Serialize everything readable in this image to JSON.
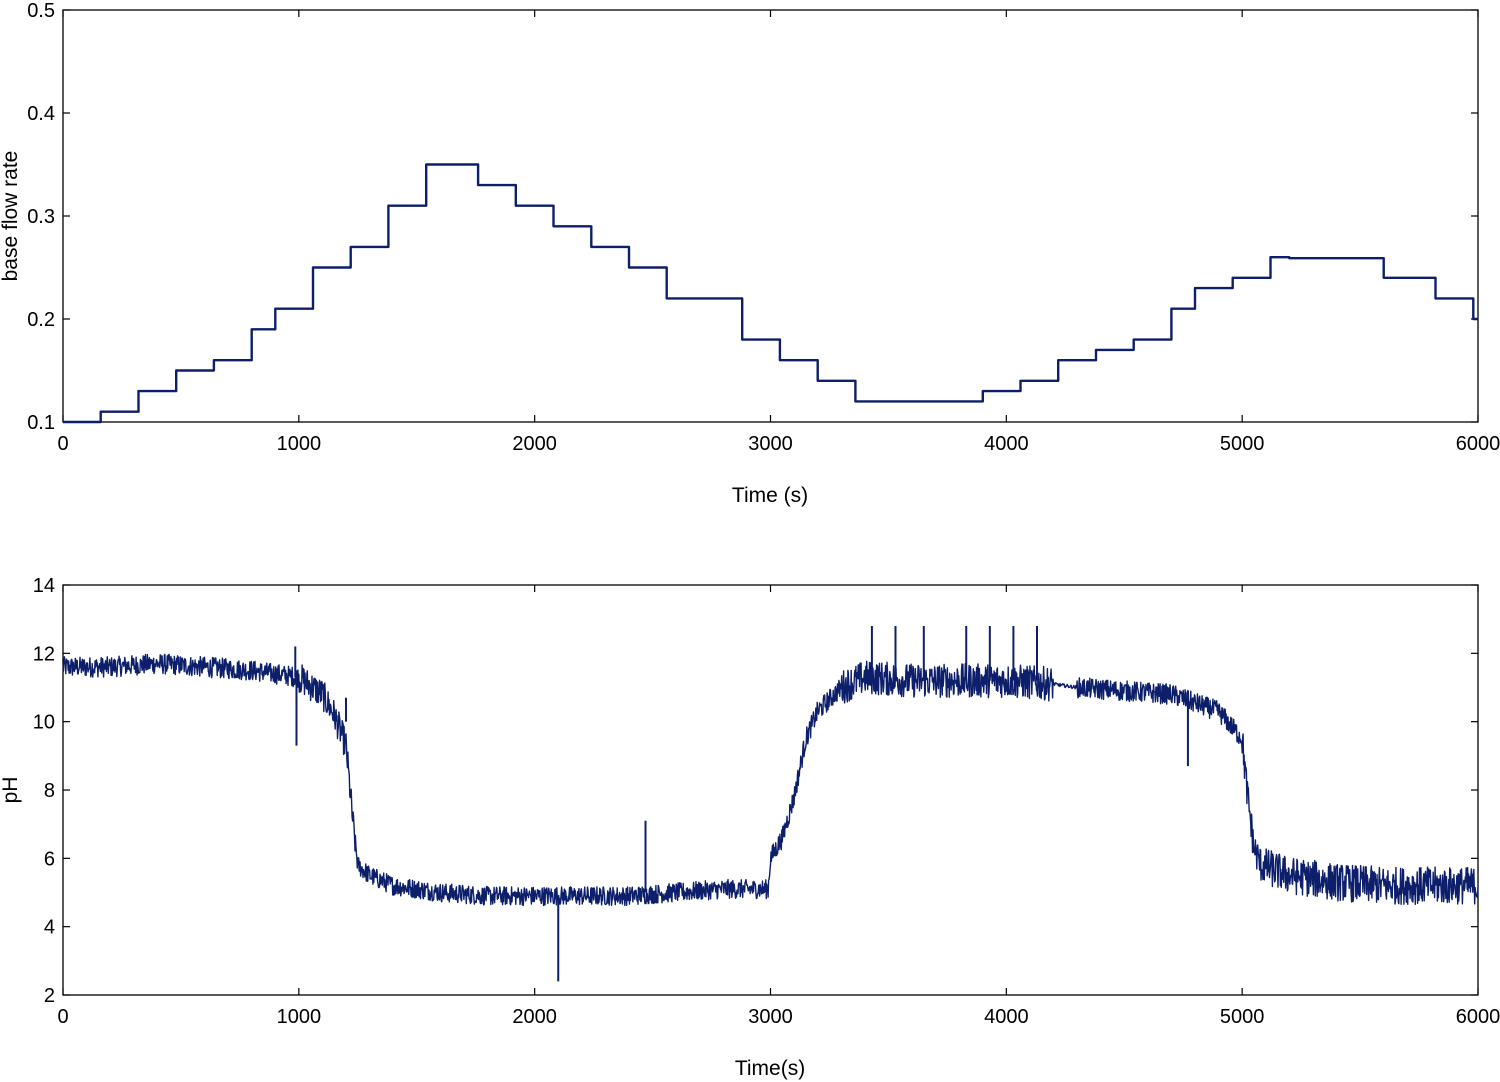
{
  "chart_data": [
    {
      "type": "line",
      "xlabel": "Time (s)",
      "ylabel": "base flow rate",
      "xlim": [
        0,
        6000
      ],
      "ylim": [
        0.1,
        0.5
      ],
      "xticks": [
        0,
        1000,
        2000,
        3000,
        4000,
        5000,
        6000
      ],
      "yticks": [
        0.1,
        0.2,
        0.3,
        0.4,
        0.5
      ],
      "xtick_labels": [
        "0",
        "1000",
        "2000",
        "3000",
        "4000",
        "5000",
        "6000"
      ],
      "ytick_labels": [
        "0.1",
        "0.2",
        "0.3",
        "0.4",
        "0.5"
      ],
      "grid": false,
      "line_color": "#0d1f6b",
      "step": true,
      "x": [
        0,
        160,
        320,
        480,
        640,
        800,
        900,
        1060,
        1220,
        1380,
        1540,
        1760,
        1920,
        2080,
        2240,
        2400,
        2560,
        2880,
        3040,
        3200,
        3360,
        3900,
        4060,
        4220,
        4380,
        4540,
        4700,
        4800,
        4960,
        5120,
        5200,
        5600,
        5820,
        5980,
        6000
      ],
      "y": [
        0.1,
        0.11,
        0.13,
        0.15,
        0.16,
        0.19,
        0.21,
        0.25,
        0.27,
        0.31,
        0.35,
        0.33,
        0.31,
        0.29,
        0.27,
        0.25,
        0.22,
        0.18,
        0.16,
        0.14,
        0.12,
        0.13,
        0.14,
        0.16,
        0.17,
        0.18,
        0.21,
        0.23,
        0.24,
        0.26,
        0.259,
        0.24,
        0.22,
        0.2,
        0.2
      ]
    },
    {
      "type": "line",
      "xlabel": "Time(s)",
      "ylabel": "pH",
      "xlim": [
        0,
        6000
      ],
      "ylim": [
        2,
        14
      ],
      "xticks": [
        0,
        1000,
        2000,
        3000,
        4000,
        5000,
        6000
      ],
      "yticks": [
        2,
        4,
        6,
        8,
        10,
        12,
        14
      ],
      "xtick_labels": [
        "0",
        "1000",
        "2000",
        "3000",
        "4000",
        "5000",
        "6000"
      ],
      "ytick_labels": [
        "2",
        "4",
        "6",
        "8",
        "10",
        "12",
        "14"
      ],
      "grid": false,
      "line_color": "#0d1f6b",
      "x": [
        0,
        200,
        400,
        600,
        800,
        1000,
        1100,
        1150,
        1200,
        1230,
        1250,
        1300,
        1400,
        1600,
        1800,
        2000,
        2200,
        2400,
        2600,
        2800,
        2990,
        3000,
        3050,
        3100,
        3150,
        3200,
        3300,
        3400,
        3600,
        3800,
        4000,
        4200,
        4300,
        4500,
        4700,
        4900,
        5000,
        5020,
        5050,
        5080,
        5200,
        5400,
        5600,
        5800,
        6000
      ],
      "y": [
        11.6,
        11.6,
        11.7,
        11.6,
        11.5,
        11.3,
        10.8,
        10.2,
        9.3,
        7.0,
        5.8,
        5.5,
        5.2,
        5.0,
        4.9,
        4.9,
        4.9,
        4.9,
        5.0,
        5.1,
        5.1,
        6.0,
        6.6,
        7.8,
        9.5,
        10.3,
        11.0,
        11.3,
        11.2,
        11.2,
        11.2,
        11.1,
        11.0,
        10.9,
        10.8,
        10.3,
        9.5,
        8.0,
        6.3,
        5.8,
        5.5,
        5.3,
        5.2,
        5.2,
        5.2
      ],
      "spikes": [
        {
          "x": 985,
          "from": 11.3,
          "to": 12.2
        },
        {
          "x": 990,
          "from": 11.3,
          "to": 9.3
        },
        {
          "x": 1200,
          "from": 10.0,
          "to": 10.7
        },
        {
          "x": 2100,
          "from": 4.9,
          "to": 2.4
        },
        {
          "x": 2470,
          "from": 5.0,
          "to": 7.1
        },
        {
          "x": 3430,
          "from": 11.2,
          "to": 12.8
        },
        {
          "x": 3530,
          "from": 11.2,
          "to": 12.8
        },
        {
          "x": 3650,
          "from": 11.2,
          "to": 12.8
        },
        {
          "x": 3830,
          "from": 11.2,
          "to": 12.8
        },
        {
          "x": 3930,
          "from": 11.2,
          "to": 12.8
        },
        {
          "x": 4030,
          "from": 11.2,
          "to": 12.8
        },
        {
          "x": 4130,
          "from": 11.2,
          "to": 12.8
        },
        {
          "x": 4770,
          "from": 10.9,
          "to": 8.7
        }
      ]
    }
  ]
}
